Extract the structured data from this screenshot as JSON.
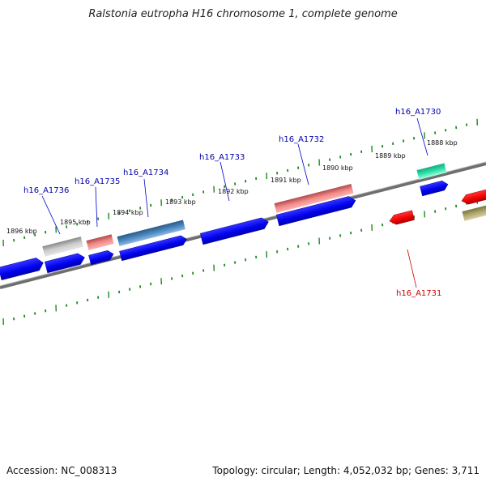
{
  "title": "Ralstonia eutropha H16 chromosome 1, complete genome",
  "footer": {
    "accession": "Accession: NC_008313",
    "summary": "Topology: circular; Length: 4,052,032 bp; Genes: 3,711"
  },
  "colors": {
    "backbone": "#777777",
    "tick": "#1f8a1f",
    "forward_gene": "#0000ee",
    "reverse_gene": "#ee0000",
    "label_forward": "#0000aa",
    "label_reverse": "#cc0000"
  },
  "kbp_labels": [
    "1896 kbp",
    "1895 kbp",
    "1894 kbp",
    "1893 kbp",
    "1892 kbp",
    "1891 kbp",
    "1890 kbp",
    "1889 kbp",
    "1888 kbp"
  ],
  "gene_labels": [
    {
      "name": "h16_A1736",
      "strand": "forward"
    },
    {
      "name": "h16_A1735",
      "strand": "forward"
    },
    {
      "name": "h16_A1734",
      "strand": "forward"
    },
    {
      "name": "h16_A1733",
      "strand": "forward"
    },
    {
      "name": "h16_A1732",
      "strand": "forward"
    },
    {
      "name": "h16_A1730",
      "strand": "forward"
    },
    {
      "name": "h16_A1731",
      "strand": "reverse"
    }
  ]
}
